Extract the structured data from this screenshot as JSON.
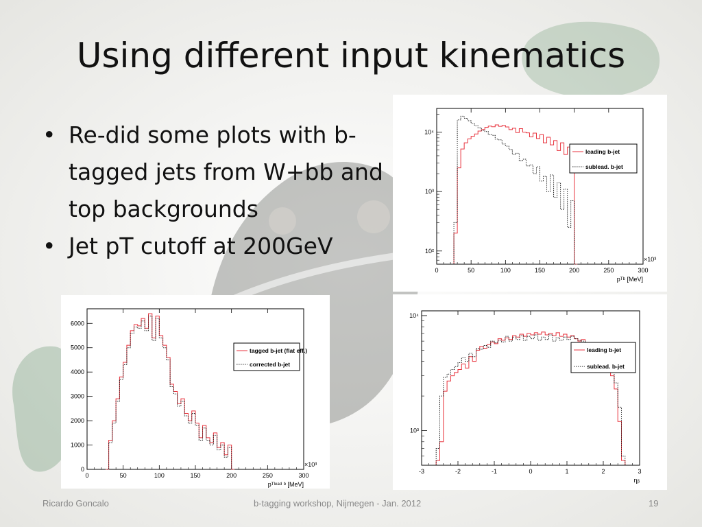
{
  "slide": {
    "title": "Using different input kinematics",
    "bullets": [
      "Re-did some plots with b-tagged jets from W+bb and top backgrounds",
      "Jet pT cutoff at 200GeV"
    ]
  },
  "footer": {
    "author": "Ricardo Goncalo",
    "event": "b-tagging workshop, Nijmegen - Jan. 2012",
    "page": "19"
  },
  "colors": {
    "red": "#e8323c",
    "black": "#222222",
    "mascot_dark": "#2e2f2c",
    "mascot_green": "#6f9a78"
  },
  "chart_data": [
    {
      "id": "pt-log",
      "type": "line",
      "log_y": true,
      "xlim": [
        0,
        300
      ],
      "ylim": [
        60,
        25000
      ],
      "xticks": [
        "0",
        "50",
        "100",
        "150",
        "200",
        "250",
        "300"
      ],
      "yticks": [
        "10²",
        "10³",
        "10⁴"
      ],
      "x_multiplier": "×10³",
      "xlabel": "pᵀᵇ [MeV]",
      "legend": "top-right",
      "series": [
        {
          "name": "leading b-jet",
          "style": "solid",
          "color": "#e8323c",
          "x": [
            25,
            30,
            35,
            40,
            45,
            50,
            55,
            60,
            65,
            70,
            75,
            80,
            85,
            90,
            95,
            100,
            105,
            110,
            115,
            120,
            125,
            130,
            135,
            140,
            145,
            150,
            155,
            160,
            165,
            170,
            175,
            180,
            185,
            190,
            195,
            200
          ],
          "y": [
            200,
            2500,
            5200,
            6600,
            7700,
            8500,
            9300,
            10400,
            11000,
            12000,
            12600,
            12300,
            13200,
            12500,
            12900,
            12200,
            11000,
            11600,
            9800,
            11400,
            10000,
            9700,
            8300,
            9600,
            7800,
            9100,
            6600,
            8200,
            6100,
            7200,
            4900,
            6600,
            4200,
            5600,
            3300,
            60
          ]
        },
        {
          "name": "sublead. b-jet",
          "style": "dotted",
          "color": "#222222",
          "x": [
            25,
            30,
            35,
            40,
            45,
            50,
            55,
            60,
            65,
            70,
            75,
            80,
            85,
            90,
            95,
            100,
            105,
            110,
            115,
            120,
            125,
            130,
            135,
            140,
            145,
            150,
            155,
            160,
            165,
            170,
            175,
            180,
            185,
            190,
            195,
            200
          ],
          "y": [
            300,
            16000,
            18500,
            17000,
            15500,
            14000,
            12800,
            11800,
            10700,
            10200,
            9100,
            8800,
            7600,
            7400,
            6300,
            5800,
            5100,
            4200,
            4400,
            3300,
            3500,
            2700,
            2800,
            2000,
            2600,
            1500,
            1800,
            1000,
            1900,
            800,
            1400,
            500,
            1100,
            250,
            700,
            60
          ]
        }
      ]
    },
    {
      "id": "pt-linear",
      "type": "line",
      "xlim": [
        0,
        300
      ],
      "ylim": [
        0,
        6600
      ],
      "xticks": [
        "0",
        "50",
        "100",
        "150",
        "200",
        "250",
        "300"
      ],
      "yticks": [
        "0",
        "1000",
        "2000",
        "3000",
        "4000",
        "5000",
        "6000"
      ],
      "x_multiplier": "×10³",
      "xlabel": "pᵀˡᵉᵃᵈ ᵇ [MeV]",
      "legend": "top-right",
      "series": [
        {
          "name": "tagged b-jet (flat eff.)",
          "style": "solid",
          "color": "#e8323c",
          "x": [
            25,
            30,
            35,
            40,
            45,
            50,
            55,
            60,
            65,
            70,
            75,
            80,
            85,
            90,
            95,
            100,
            105,
            110,
            115,
            120,
            125,
            130,
            135,
            140,
            145,
            150,
            155,
            160,
            165,
            170,
            175,
            180,
            185,
            190,
            195,
            200
          ],
          "y": [
            0,
            1200,
            2000,
            2900,
            3800,
            4400,
            5100,
            5700,
            5950,
            5900,
            6200,
            5800,
            6400,
            5400,
            6300,
            5500,
            5100,
            4600,
            3500,
            3200,
            2700,
            2900,
            2300,
            2000,
            2400,
            1900,
            1300,
            1800,
            1300,
            1100,
            1500,
            900,
            1100,
            600,
            1000,
            0
          ]
        },
        {
          "name": "corrected b-jet",
          "style": "dotted",
          "color": "#222222",
          "x": [
            25,
            30,
            35,
            40,
            45,
            50,
            55,
            60,
            65,
            70,
            75,
            80,
            85,
            90,
            95,
            100,
            105,
            110,
            115,
            120,
            125,
            130,
            135,
            140,
            145,
            150,
            155,
            160,
            165,
            170,
            175,
            180,
            185,
            190,
            195,
            200
          ],
          "y": [
            0,
            1100,
            1900,
            2800,
            3700,
            4300,
            5000,
            5600,
            5850,
            5800,
            6100,
            5700,
            6300,
            5300,
            6200,
            5400,
            5000,
            4500,
            3400,
            3100,
            2600,
            2800,
            2200,
            1900,
            2300,
            1800,
            1200,
            1700,
            1200,
            1000,
            1400,
            800,
            1000,
            500,
            900,
            0
          ]
        }
      ]
    },
    {
      "id": "eta-log",
      "type": "line",
      "log_y": true,
      "xlim": [
        -3,
        3
      ],
      "ylim": [
        500,
        11000
      ],
      "xticks": [
        "-3",
        "-2",
        "-1",
        "0",
        "1",
        "2",
        "3"
      ],
      "yticks": [
        "10³",
        "10⁴"
      ],
      "xlabel": "ηᵦ",
      "legend": "top-right",
      "series": [
        {
          "name": "leading b-jet",
          "style": "solid",
          "color": "#e8323c",
          "x": [
            -2.6,
            -2.5,
            -2.4,
            -2.3,
            -2.2,
            -2.1,
            -2.0,
            -1.9,
            -1.8,
            -1.7,
            -1.6,
            -1.5,
            -1.4,
            -1.3,
            -1.2,
            -1.1,
            -1.0,
            -0.9,
            -0.8,
            -0.7,
            -0.6,
            -0.5,
            -0.4,
            -0.3,
            -0.2,
            -0.1,
            0.0,
            0.1,
            0.2,
            0.3,
            0.4,
            0.5,
            0.6,
            0.7,
            0.8,
            0.9,
            1.0,
            1.1,
            1.2,
            1.3,
            1.4,
            1.5,
            1.6,
            1.7,
            1.8,
            1.9,
            2.0,
            2.1,
            2.2,
            2.3,
            2.4,
            2.5
          ],
          "y": [
            550,
            800,
            2200,
            2700,
            3000,
            3200,
            3400,
            3800,
            3500,
            4400,
            4000,
            5000,
            5400,
            5200,
            5600,
            5900,
            5700,
            6300,
            6100,
            6400,
            6200,
            6700,
            6500,
            6900,
            6600,
            7000,
            6800,
            7100,
            6900,
            7200,
            6800,
            7000,
            6700,
            7100,
            6600,
            6900,
            6500,
            6700,
            6300,
            6000,
            6200,
            5800,
            5600,
            5400,
            5000,
            4700,
            4300,
            3800,
            3000,
            2300,
            1200,
            550
          ]
        },
        {
          "name": "sublead. b-jet",
          "style": "dotted",
          "color": "#222222",
          "x": [
            -2.6,
            -2.5,
            -2.4,
            -2.3,
            -2.2,
            -2.1,
            -2.0,
            -1.9,
            -1.8,
            -1.7,
            -1.6,
            -1.5,
            -1.4,
            -1.3,
            -1.2,
            -1.1,
            -1.0,
            -0.9,
            -0.8,
            -0.7,
            -0.6,
            -0.5,
            -0.4,
            -0.3,
            -0.2,
            -0.1,
            0.0,
            0.1,
            0.2,
            0.3,
            0.4,
            0.5,
            0.6,
            0.7,
            0.8,
            0.9,
            1.0,
            1.1,
            1.2,
            1.3,
            1.4,
            1.5,
            1.6,
            1.7,
            1.8,
            1.9,
            2.0,
            2.1,
            2.2,
            2.3,
            2.4,
            2.5
          ],
          "y": [
            700,
            2000,
            2900,
            3100,
            3400,
            3600,
            3900,
            4300,
            4000,
            4700,
            4400,
            5200,
            5100,
            5500,
            5300,
            6000,
            5800,
            6100,
            5900,
            6600,
            6000,
            6500,
            6200,
            6700,
            6100,
            6600,
            6300,
            6800,
            6100,
            6500,
            6200,
            6800,
            6000,
            6400,
            6100,
            6500,
            6200,
            6600,
            6300,
            6100,
            6000,
            5700,
            5800,
            5300,
            5200,
            4900,
            4600,
            4000,
            3300,
            2600,
            1600,
            600
          ]
        }
      ]
    }
  ]
}
